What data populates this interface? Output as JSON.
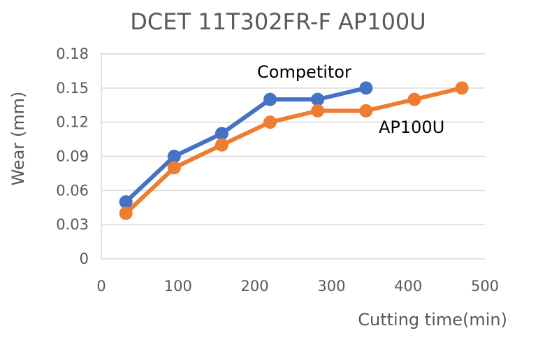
{
  "chart_data": {
    "type": "line",
    "title": "DCET 11T302FR-F AP100U",
    "xlabel": "Cutting time(min)",
    "ylabel": "Wear (mm)",
    "xlim": [
      0,
      500
    ],
    "ylim": [
      0,
      0.18
    ],
    "x_ticks": [
      "0",
      "100",
      "200",
      "300",
      "400",
      "500"
    ],
    "y_ticks": [
      "0",
      "0.03",
      "0.06",
      "0.09",
      "0.12",
      "0.15",
      "0.18"
    ],
    "grid": true,
    "legend": "inline labels",
    "series": [
      {
        "name": "Competitor",
        "color": "#4472c4",
        "x": [
          32,
          95,
          157,
          220,
          282,
          345
        ],
        "y": [
          0.05,
          0.09,
          0.11,
          0.14,
          0.14,
          0.15
        ]
      },
      {
        "name": "AP100U",
        "color": "#ed7d31",
        "x": [
          32,
          95,
          157,
          220,
          282,
          345,
          408,
          470
        ],
        "y": [
          0.04,
          0.08,
          0.1,
          0.12,
          0.13,
          0.13,
          0.14,
          0.15
        ]
      }
    ]
  }
}
